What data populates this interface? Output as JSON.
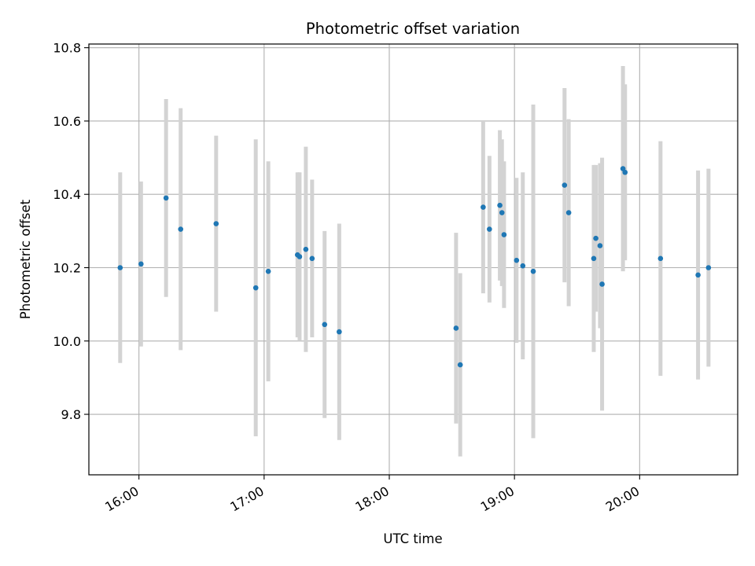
{
  "chart_data": {
    "type": "scatter",
    "title": "Photometric offset variation",
    "xlabel": "UTC time",
    "ylabel": "Photometric offset",
    "x_axis_type": "time",
    "xlim": [
      "15:36",
      "20:47"
    ],
    "ylim": [
      9.635,
      10.81
    ],
    "x_ticks": [
      "16:00",
      "17:00",
      "18:00",
      "19:00",
      "20:00"
    ],
    "y_ticks": [
      9.8,
      10.0,
      10.2,
      10.4,
      10.6,
      10.8
    ],
    "grid": true,
    "marker_color": "#1f77b4",
    "errorbar_color": "#d3d3d3",
    "series": [
      {
        "points": [
          {
            "t": "15:51",
            "y": 10.2,
            "err": 0.26
          },
          {
            "t": "16:01",
            "y": 10.21,
            "err": 0.225
          },
          {
            "t": "16:13",
            "y": 10.39,
            "err": 0.27
          },
          {
            "t": "16:20",
            "y": 10.305,
            "err": 0.33
          },
          {
            "t": "16:37",
            "y": 10.32,
            "err": 0.24
          },
          {
            "t": "16:56",
            "y": 10.145,
            "err": 0.405
          },
          {
            "t": "17:02",
            "y": 10.19,
            "err": 0.3
          },
          {
            "t": "17:16",
            "y": 10.235,
            "err": 0.225
          },
          {
            "t": "17:17",
            "y": 10.23,
            "err": 0.23
          },
          {
            "t": "17:20",
            "y": 10.25,
            "err": 0.28
          },
          {
            "t": "17:23",
            "y": 10.225,
            "err": 0.215
          },
          {
            "t": "17:29",
            "y": 10.045,
            "err": 0.255
          },
          {
            "t": "17:36",
            "y": 10.025,
            "err": 0.295
          },
          {
            "t": "18:32",
            "y": 10.035,
            "err": 0.26
          },
          {
            "t": "18:34",
            "y": 9.935,
            "err": 0.25
          },
          {
            "t": "18:45",
            "y": 10.365,
            "err": 0.235
          },
          {
            "t": "18:48",
            "y": 10.305,
            "err": 0.2
          },
          {
            "t": "18:53",
            "y": 10.37,
            "err": 0.205
          },
          {
            "t": "18:54",
            "y": 10.35,
            "err": 0.2
          },
          {
            "t": "18:55",
            "y": 10.29,
            "err": 0.2
          },
          {
            "t": "19:01",
            "y": 10.22,
            "err": 0.225
          },
          {
            "t": "19:04",
            "y": 10.205,
            "err": 0.255
          },
          {
            "t": "19:09",
            "y": 10.19,
            "err": 0.455
          },
          {
            "t": "19:24",
            "y": 10.425,
            "err": 0.265
          },
          {
            "t": "19:26",
            "y": 10.35,
            "err": 0.255
          },
          {
            "t": "19:38",
            "y": 10.225,
            "err": 0.255
          },
          {
            "t": "19:39",
            "y": 10.28,
            "err": 0.2
          },
          {
            "t": "19:41",
            "y": 10.26,
            "err": 0.225
          },
          {
            "t": "19:42",
            "y": 10.155,
            "err": 0.345
          },
          {
            "t": "19:52",
            "y": 10.47,
            "err": 0.28
          },
          {
            "t": "19:53",
            "y": 10.46,
            "err": 0.24
          },
          {
            "t": "20:10",
            "y": 10.225,
            "err": 0.32
          },
          {
            "t": "20:28",
            "y": 10.18,
            "err": 0.285
          },
          {
            "t": "20:33",
            "y": 10.2,
            "err": 0.27
          }
        ]
      }
    ]
  }
}
